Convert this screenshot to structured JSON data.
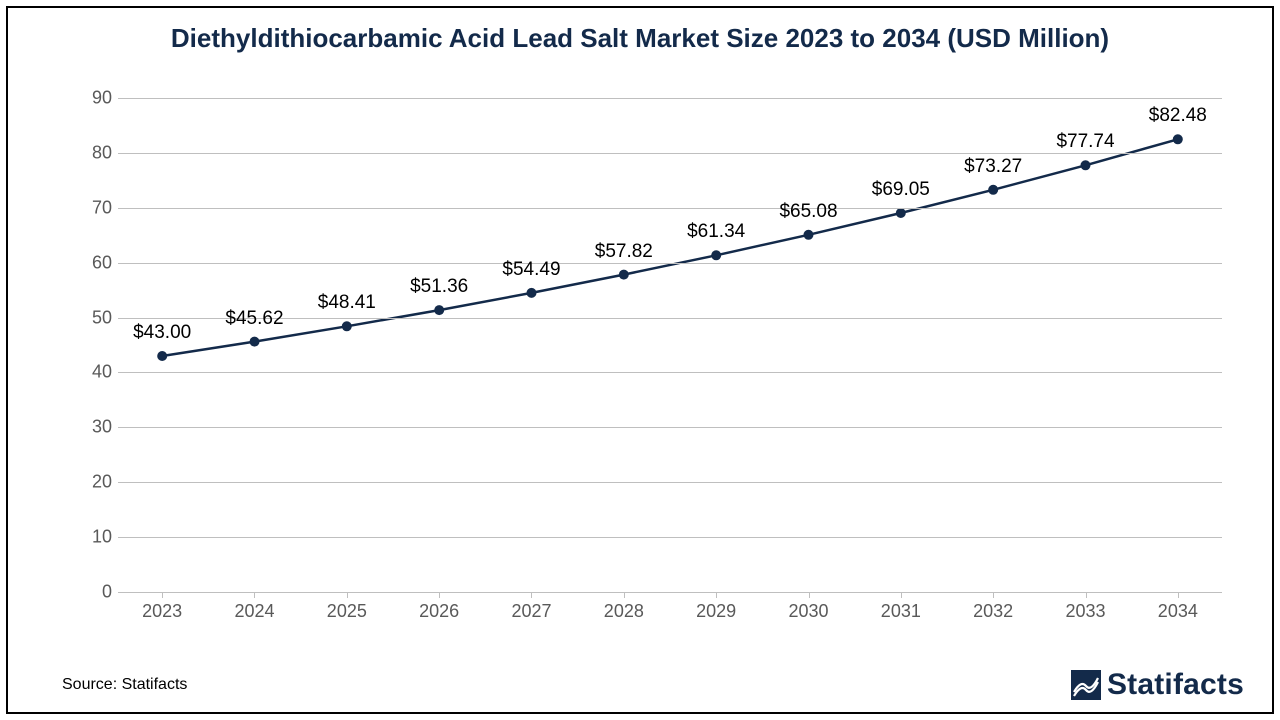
{
  "chart": {
    "type": "line",
    "title": "Diethyldithiocarbamic Acid Lead Salt Market Size 2023 to 2034 (USD Million)",
    "title_color": "#132a4a",
    "title_fontsize": 26,
    "background_color": "#ffffff",
    "border_color": "#000000",
    "grid_color": "#bfbfbf",
    "axis_label_color": "#595959",
    "axis_label_fontsize": 18,
    "data_label_fontsize": 19,
    "data_label_prefix": "$",
    "line_color": "#132a4a",
    "line_width": 2.5,
    "marker_style": "circle",
    "marker_size": 5,
    "marker_color": "#132a4a",
    "ylim": [
      0,
      90
    ],
    "ytick_step": 10,
    "yticks": [
      0,
      10,
      20,
      30,
      40,
      50,
      60,
      70,
      80,
      90
    ],
    "categories": [
      "2023",
      "2024",
      "2025",
      "2026",
      "2027",
      "2028",
      "2029",
      "2030",
      "2031",
      "2032",
      "2033",
      "2034"
    ],
    "values": [
      43.0,
      45.62,
      48.41,
      51.36,
      54.49,
      57.82,
      61.34,
      65.08,
      69.05,
      73.27,
      77.74,
      82.48
    ],
    "value_labels": [
      "$43.00",
      "$45.62",
      "$48.41",
      "$51.36",
      "$54.49",
      "$57.82",
      "$61.34",
      "$65.08",
      "$69.05",
      "$73.27",
      "$77.74",
      "$82.48"
    ]
  },
  "footer": {
    "source_text": "Source: Statifacts",
    "brand_text": "Statifacts"
  }
}
